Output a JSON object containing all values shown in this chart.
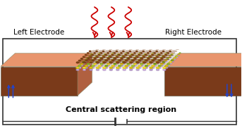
{
  "fig_width": 3.43,
  "fig_height": 1.89,
  "dpi": 100,
  "bg_color": "#ffffff",
  "electrode_top_color": "#e8956d",
  "electrode_side_color": "#7a3a1a",
  "electrode_right_color": "#b06040",
  "left_label": "Left Electrode",
  "right_label": "Right Electrode",
  "center_label": "Central scattering region",
  "radiation_color": "#cc0000",
  "arrow_color": "#2244cc",
  "circuit_color": "#333333",
  "shadow_color": "#c0bbb0",
  "layer_yellow": "#d8c830",
  "layer_green": "#88b830",
  "graphdiyne_color": "#7a4015"
}
